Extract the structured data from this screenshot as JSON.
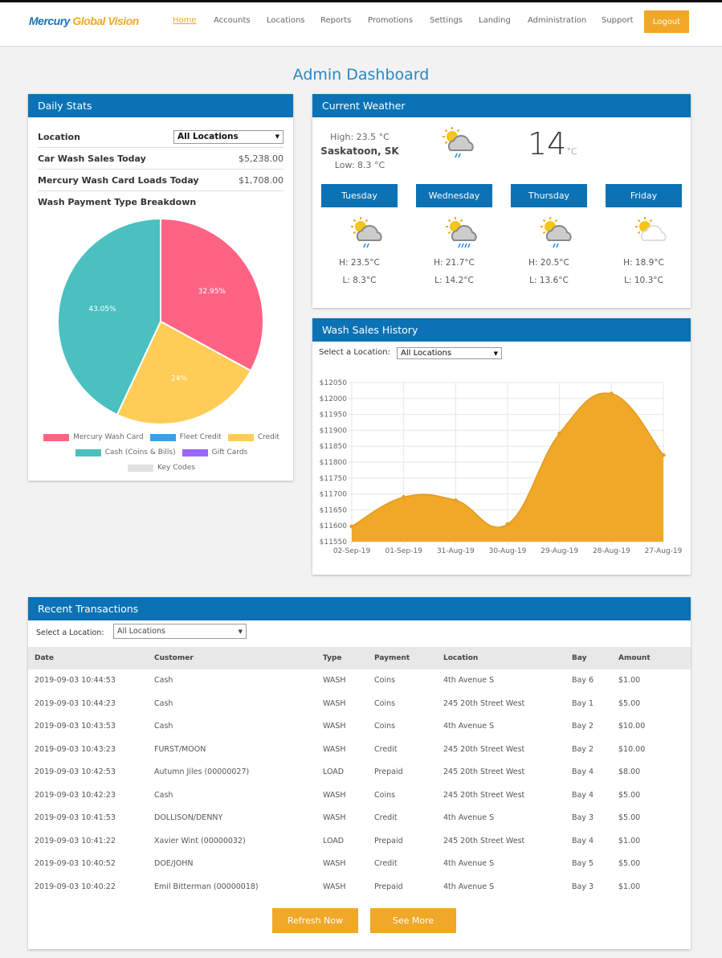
{
  "nav": {
    "logo_a": "Mercury",
    "logo_b": "Global Vision",
    "links": [
      "Home",
      "Accounts",
      "Locations",
      "Reports",
      "Promotions",
      "Settings",
      "Landing",
      "Administration",
      "Support"
    ],
    "logout": "Logout"
  },
  "page_title": "Admin Dashboard",
  "daily": {
    "title": "Daily Stats",
    "location_label": "Location",
    "location_value": "All Locations",
    "sales_label": "Car Wash Sales Today",
    "sales_value": "$5,238.00",
    "loads_label": "Mercury Wash Card Loads Today",
    "loads_value": "$1,708.00",
    "breakdown_label": "Wash Payment Type Breakdown",
    "pie": {
      "type": "pie",
      "slices": [
        {
          "label": "Mercury Wash Card",
          "value": 32.95,
          "text": "32.95%",
          "color": "#ff6384"
        },
        {
          "label": "Credit",
          "value": 24,
          "text": "24%",
          "color": "#ffcd56"
        },
        {
          "label": "Cash (Coins & Bills)",
          "value": 43.05,
          "text": "43.05%",
          "color": "#4bc0c0"
        }
      ],
      "legend": [
        {
          "label": "Mercury Wash Card",
          "color": "#ff6384"
        },
        {
          "label": "Fleet Credit",
          "color": "#36a2eb"
        },
        {
          "label": "Credit",
          "color": "#ffcd56"
        },
        {
          "label": "Cash (Coins & Bills)",
          "color": "#4bc0c0"
        },
        {
          "label": "Gift Cards",
          "color": "#9966ff"
        },
        {
          "label": "Key Codes",
          "color": "#e0e0e0"
        }
      ]
    }
  },
  "weather": {
    "title": "Current Weather",
    "high": "High: 23.5 °C",
    "city": "Saskatoon, SK",
    "low": "Low: 8.3 °C",
    "temp": "14",
    "unit": "°C",
    "icon": "partly-cloudy-rain-icon",
    "days": [
      {
        "day": "Tuesday",
        "h": "H: 23.5°C",
        "l": "L: 8.3°C",
        "icon": "light-rain"
      },
      {
        "day": "Wednesday",
        "h": "H: 21.7°C",
        "l": "L: 14.2°C",
        "icon": "rain"
      },
      {
        "day": "Thursday",
        "h": "H: 20.5°C",
        "l": "L: 13.6°C",
        "icon": "light-rain"
      },
      {
        "day": "Friday",
        "h": "H: 18.9°C",
        "l": "L: 10.3°C",
        "icon": "partly-cloudy"
      }
    ]
  },
  "history": {
    "title": "Wash Sales History",
    "select_label": "Select a Location:",
    "select_value": "All Locations"
  },
  "chart_data": {
    "type": "area",
    "x": [
      "02-Sep-19",
      "01-Sep-19",
      "31-Aug-19",
      "30-Aug-19",
      "29-Aug-19",
      "28-Aug-19",
      "27-Aug-19"
    ],
    "values": [
      11598,
      11690,
      11680,
      11605,
      11890,
      12015,
      11822
    ],
    "ylim": [
      11550,
      12050
    ],
    "yticks": [
      "$12050",
      "$12000",
      "$11950",
      "$11900",
      "$11850",
      "$11800",
      "$11750",
      "$11700",
      "$11650",
      "$11600",
      "$11550"
    ],
    "color": "#f0a828",
    "grid": true
  },
  "recent": {
    "title": "Recent Transactions",
    "select_label": "Select a Location:",
    "select_value": "All Locations",
    "columns": [
      "Date",
      "Customer",
      "Type",
      "Payment",
      "Location",
      "Bay",
      "Amount"
    ],
    "rows": [
      [
        "2019-09-03 10:44:53",
        "Cash",
        "WASH",
        "Coins",
        "4th Avenue S",
        "Bay 6",
        "$1.00"
      ],
      [
        "2019-09-03 10:44:23",
        "Cash",
        "WASH",
        "Coins",
        "245 20th Street West",
        "Bay 1",
        "$5.00"
      ],
      [
        "2019-09-03 10:43:53",
        "Cash",
        "WASH",
        "Coins",
        "4th Avenue S",
        "Bay 2",
        "$10.00"
      ],
      [
        "2019-09-03 10:43:23",
        "FURST/MOON",
        "WASH",
        "Credit",
        "245 20th Street West",
        "Bay 2",
        "$10.00"
      ],
      [
        "2019-09-03 10:42:53",
        " Autumn Jiles (00000027)",
        "LOAD",
        "Prepaid",
        "245 20th Street West",
        "Bay 4",
        "$8.00"
      ],
      [
        "2019-09-03 10:42:23",
        "Cash",
        "WASH",
        "Coins",
        "245 20th Street West",
        "Bay 4",
        "$5.00"
      ],
      [
        "2019-09-03 10:41:53",
        "DOLLISON/DENNY",
        "WASH",
        "Credit",
        "4th Avenue S",
        "Bay 3",
        "$5.00"
      ],
      [
        "2019-09-03 10:41:22",
        " Xavier Wint (00000032)",
        "LOAD",
        "Prepaid",
        "245 20th Street West",
        "Bay 4",
        "$1.00"
      ],
      [
        "2019-09-03 10:40:52",
        "DOE/JOHN",
        "WASH",
        "Credit",
        "4th Avenue S",
        "Bay 5",
        "$5.00"
      ],
      [
        "2019-09-03 10:40:22",
        " Emil Bitterman (00000018)",
        "WASH",
        "Prepaid",
        "4th Avenue S",
        "Bay 3",
        "$1.00"
      ]
    ],
    "refresh": "Refresh Now",
    "more": "See More"
  }
}
